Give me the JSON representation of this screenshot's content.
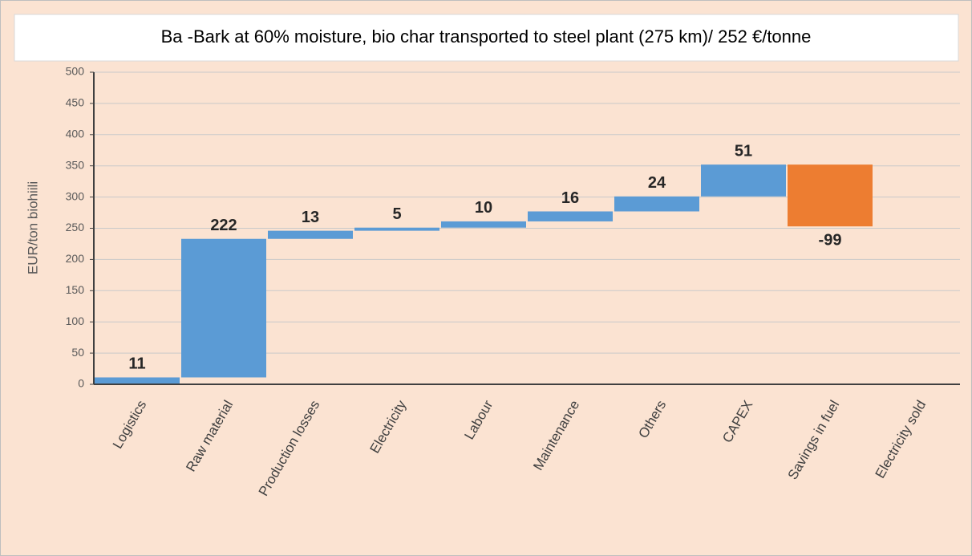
{
  "chart_data": {
    "type": "waterfall",
    "title": "Ba -Bark at 60% moisture, bio char transported to steel plant (275 km)/ 252 €/tonne",
    "y_label": "EUR/ton biohiili",
    "categories": [
      "Logistics",
      "Raw material",
      "Production losses",
      "Electricity",
      "Labour",
      "Maintenance",
      "Others",
      "CAPEX",
      "Savings in fuel",
      "Electricity sold"
    ],
    "values": [
      11,
      222,
      13,
      5,
      10,
      16,
      24,
      51,
      -99,
      null
    ],
    "increase_color": "#5b9bd5",
    "decrease_color": "#ed7d31",
    "ylim": [
      0,
      500
    ],
    "yticks": [
      0,
      50,
      100,
      150,
      200,
      250,
      300,
      350,
      400,
      450,
      500
    ],
    "grid": true
  }
}
